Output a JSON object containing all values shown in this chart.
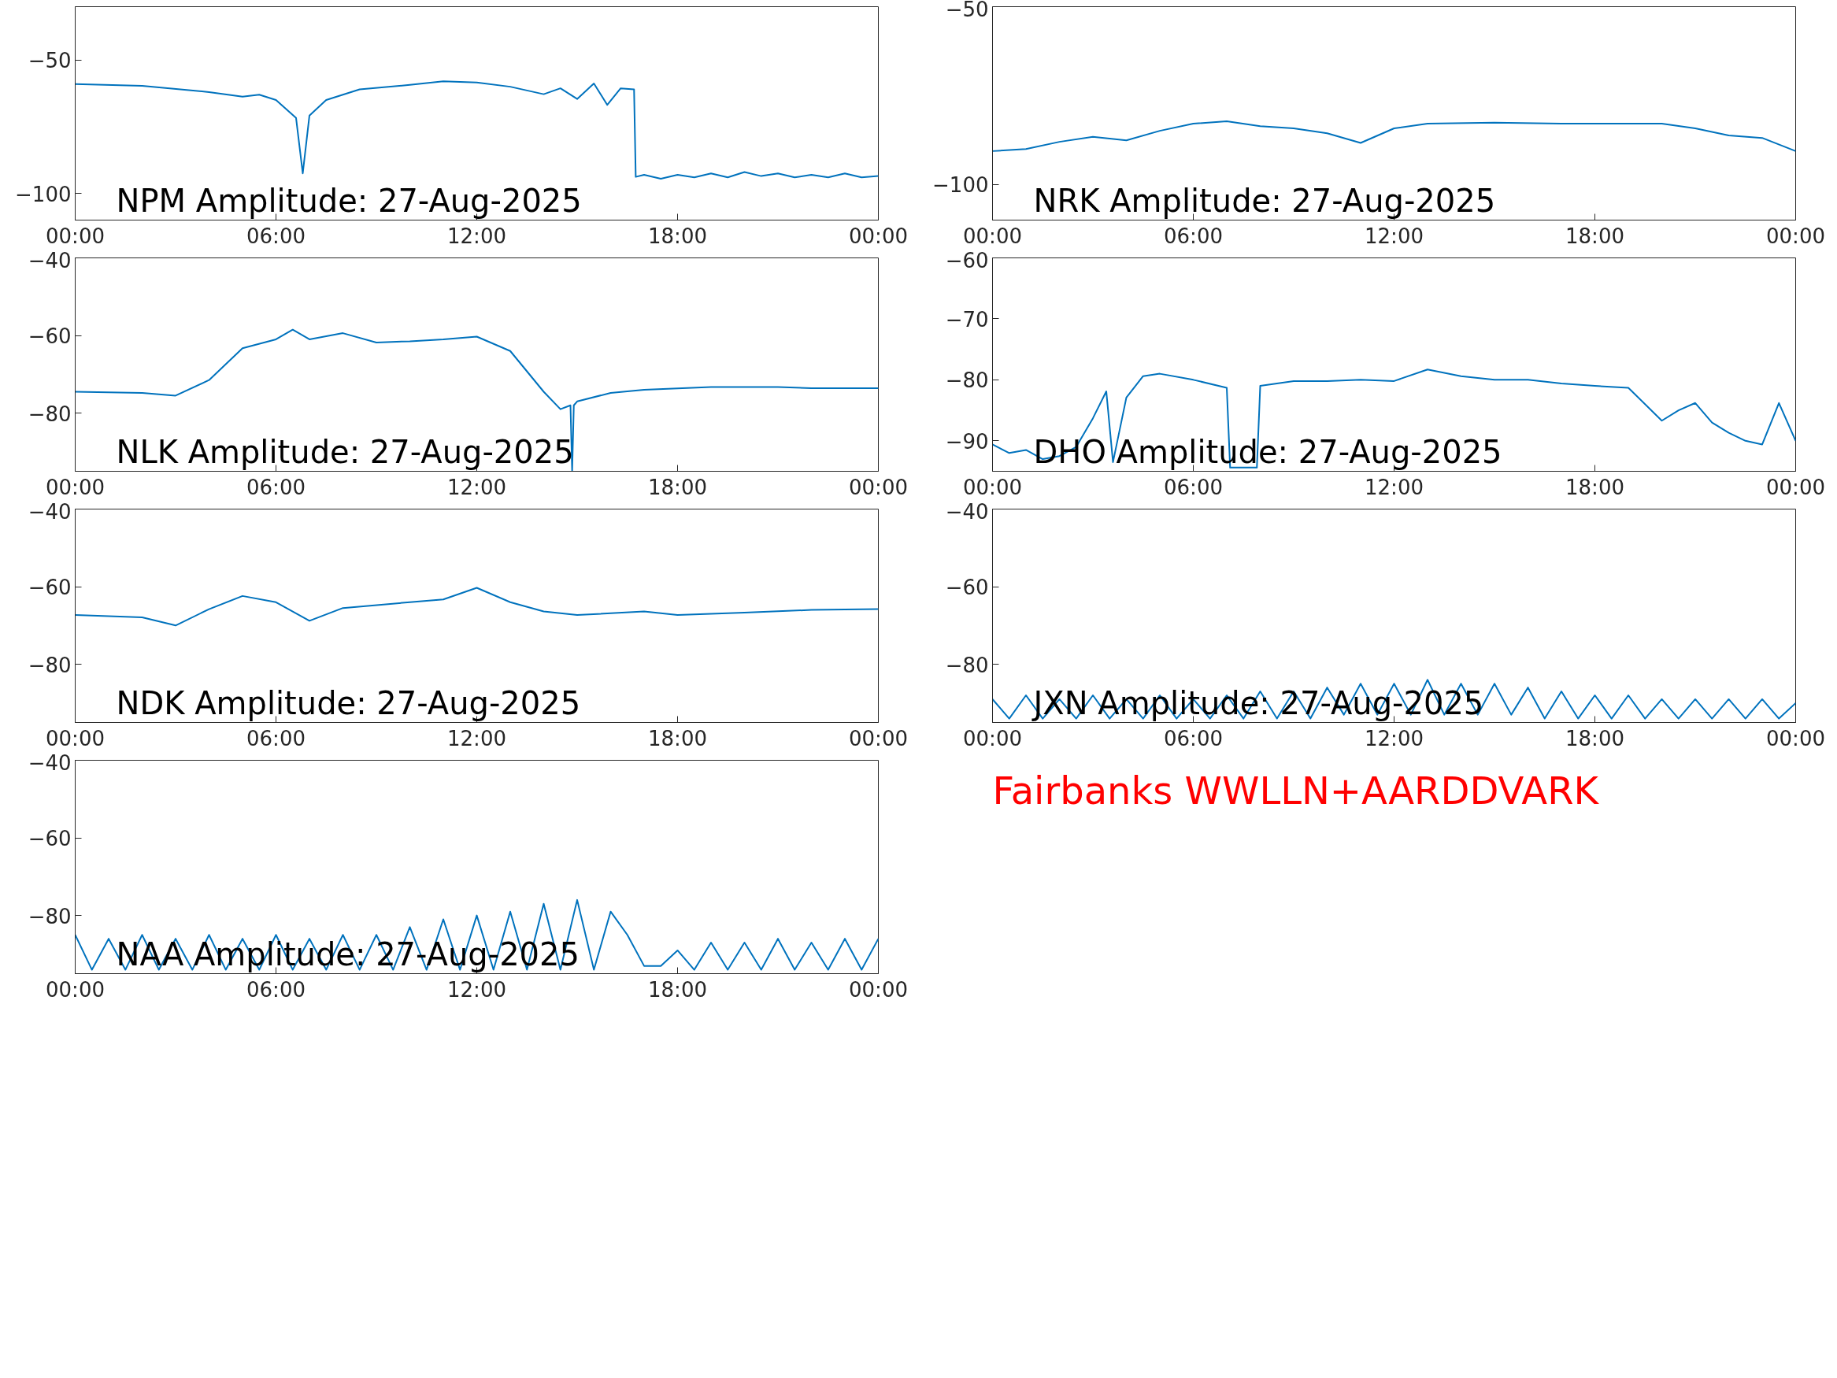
{
  "chart_data": [
    {
      "type": "line",
      "title": "NPM Amplitude: 27-Aug-2025",
      "x": [
        0,
        2,
        4,
        5,
        5.5,
        6,
        6.6,
        6.8,
        7,
        7.5,
        8.5,
        10,
        11,
        12,
        13,
        14,
        14.5,
        15,
        15.5,
        15.9,
        16.3,
        16.7,
        16.75,
        17,
        17.5,
        18,
        18.5,
        19,
        19.5,
        20,
        20.5,
        21,
        21.5,
        22,
        22.5,
        23,
        23.5,
        24
      ],
      "series": [
        {
          "color": "#0072bd",
          "values": [
            -59,
            -59.7,
            -62,
            -63.7,
            -63,
            -65,
            -71.7,
            -92.5,
            -70.8,
            -65,
            -61,
            -59.3,
            -58,
            -58.4,
            -60,
            -62.8,
            -60.6,
            -64.6,
            -58.8,
            -66.8,
            -60.6,
            -61,
            -93.8,
            -93,
            -94.5,
            -93,
            -94,
            -92.5,
            -94,
            -92,
            -93.5,
            -92.5,
            -94,
            -93,
            -94,
            -92.5,
            -94,
            -93.5
          ]
        }
      ],
      "xlim": [
        0,
        24
      ],
      "xticks": [
        {
          "value": 0,
          "label": "00:00"
        },
        {
          "value": 6,
          "label": "06:00"
        },
        {
          "value": 12,
          "label": "12:00"
        },
        {
          "value": 18,
          "label": "18:00"
        },
        {
          "value": 24,
          "label": "00:00"
        }
      ],
      "ylim": [
        -110,
        -30
      ],
      "yticks": [
        -100,
        -50
      ]
    },
    {
      "type": "line",
      "title": "NRK Amplitude: 27-Aug-2025",
      "x": [
        0,
        1,
        2,
        3,
        4,
        5,
        6,
        7,
        8,
        9,
        10,
        11,
        12,
        13,
        15,
        17,
        19,
        20,
        21,
        22,
        23,
        24
      ],
      "series": [
        {
          "color": "#0072bd",
          "values": [
            -90.6,
            -90,
            -88,
            -86.6,
            -87.6,
            -84.9,
            -82.9,
            -82.2,
            -83.6,
            -84.2,
            -85.6,
            -88.3,
            -84.2,
            -82.9,
            -82.6,
            -82.9,
            -82.9,
            -82.9,
            -84.2,
            -86.2,
            -86.9,
            -90.6
          ]
        }
      ],
      "xlim": [
        0,
        24
      ],
      "xticks": [
        {
          "value": 0,
          "label": "00:00"
        },
        {
          "value": 6,
          "label": "06:00"
        },
        {
          "value": 12,
          "label": "12:00"
        },
        {
          "value": 18,
          "label": "18:00"
        },
        {
          "value": 24,
          "label": "00:00"
        }
      ],
      "ylim": [
        -110,
        -50
      ],
      "yticks": [
        -100,
        -50
      ]
    },
    {
      "type": "line",
      "title": "NLK Amplitude: 27-Aug-2025",
      "x": [
        0,
        2,
        3,
        4,
        5,
        6,
        6.5,
        7,
        8,
        9,
        10,
        11,
        12,
        13,
        14,
        14.5,
        14.8,
        14.85,
        14.9,
        15,
        16,
        17,
        19,
        21,
        22,
        24
      ],
      "series": [
        {
          "color": "#0072bd",
          "values": [
            -74.5,
            -74.8,
            -75.5,
            -71.5,
            -63.3,
            -61,
            -58.5,
            -61,
            -59.4,
            -61.8,
            -61.5,
            -61,
            -60.3,
            -64,
            -74.5,
            -79,
            -78,
            -95,
            -78,
            -77,
            -74.8,
            -74,
            -73.3,
            -73.3,
            -73.6,
            -73.6
          ]
        }
      ],
      "xlim": [
        0,
        24
      ],
      "xticks": [
        {
          "value": 0,
          "label": "00:00"
        },
        {
          "value": 6,
          "label": "06:00"
        },
        {
          "value": 12,
          "label": "12:00"
        },
        {
          "value": 18,
          "label": "18:00"
        },
        {
          "value": 24,
          "label": "00:00"
        }
      ],
      "ylim": [
        -95,
        -40
      ],
      "yticks": [
        -80,
        -60,
        -40
      ]
    },
    {
      "type": "line",
      "title": "DHO Amplitude: 27-Aug-2025",
      "x": [
        0,
        0.5,
        1,
        1.5,
        2,
        2.5,
        3,
        3.4,
        3.6,
        4,
        4.5,
        5,
        6,
        7,
        7.1,
        7.5,
        7.9,
        8,
        9,
        10,
        11,
        12,
        13,
        14,
        15,
        16,
        17,
        18,
        19,
        20,
        20.5,
        21,
        21.5,
        22,
        22.5,
        23,
        23.5,
        24
      ],
      "series": [
        {
          "color": "#0072bd",
          "values": [
            -90.6,
            -92,
            -91.5,
            -93,
            -92.5,
            -91,
            -86.3,
            -81.9,
            -93.5,
            -82.9,
            -79.4,
            -79,
            -80,
            -81.3,
            -94.4,
            -94.4,
            -94.4,
            -81,
            -80.2,
            -80.2,
            -80,
            -80.2,
            -78.3,
            -79.4,
            -80,
            -80,
            -80.6,
            -81,
            -81.3,
            -86.7,
            -85,
            -83.8,
            -87,
            -88.7,
            -90,
            -90.6,
            -83.8,
            -90
          ]
        }
      ],
      "xlim": [
        0,
        24
      ],
      "xticks": [
        {
          "value": 0,
          "label": "00:00"
        },
        {
          "value": 6,
          "label": "06:00"
        },
        {
          "value": 12,
          "label": "12:00"
        },
        {
          "value": 18,
          "label": "18:00"
        },
        {
          "value": 24,
          "label": "00:00"
        }
      ],
      "ylim": [
        -95,
        -60
      ],
      "yticks": [
        -90,
        -80,
        -70,
        -60
      ]
    },
    {
      "type": "line",
      "title": "NDK Amplitude: 27-Aug-2025",
      "x": [
        0,
        2,
        3,
        4,
        5,
        6,
        7,
        8,
        10,
        11,
        12,
        13,
        14,
        15,
        17,
        18,
        20,
        22,
        24
      ],
      "series": [
        {
          "color": "#0072bd",
          "values": [
            -67.3,
            -67.9,
            -70,
            -65.8,
            -62.4,
            -64,
            -68.8,
            -65.5,
            -64,
            -63.3,
            -60.3,
            -64,
            -66.4,
            -67.3,
            -66.4,
            -67.3,
            -66.7,
            -66,
            -65.8
          ]
        }
      ],
      "xlim": [
        0,
        24
      ],
      "xticks": [
        {
          "value": 0,
          "label": "00:00"
        },
        {
          "value": 6,
          "label": "06:00"
        },
        {
          "value": 12,
          "label": "12:00"
        },
        {
          "value": 18,
          "label": "18:00"
        },
        {
          "value": 24,
          "label": "00:00"
        }
      ],
      "ylim": [
        -95,
        -40
      ],
      "yticks": [
        -80,
        -60,
        -40
      ]
    },
    {
      "type": "line",
      "title": "JXN Amplitude: 27-Aug-2025",
      "x": [
        0,
        0.5,
        1,
        1.5,
        2,
        2.5,
        3,
        3.5,
        4,
        4.5,
        5,
        5.5,
        6,
        6.5,
        7,
        7.5,
        8,
        8.5,
        9,
        9.5,
        10,
        10.5,
        11,
        11.5,
        12,
        12.5,
        13,
        13.5,
        14,
        14.5,
        15,
        15.5,
        16,
        16.5,
        17,
        17.5,
        18,
        18.5,
        19,
        19.5,
        20,
        20.5,
        21,
        21.5,
        22,
        22.5,
        23,
        23.5,
        24
      ],
      "series": [
        {
          "color": "#0072bd",
          "values": [
            -89,
            -94,
            -88,
            -94,
            -89,
            -94,
            -88,
            -94,
            -89,
            -94,
            -88,
            -94,
            -89,
            -94,
            -88,
            -94,
            -87,
            -94,
            -87,
            -94,
            -86,
            -93,
            -85,
            -93,
            -85,
            -93,
            -84,
            -93,
            -85,
            -93,
            -85,
            -93,
            -86,
            -94,
            -87,
            -94,
            -88,
            -94,
            -88,
            -94,
            -89,
            -94,
            -89,
            -94,
            -89,
            -94,
            -89,
            -94,
            -90
          ]
        }
      ],
      "xlim": [
        0,
        24
      ],
      "xticks": [
        {
          "value": 0,
          "label": "00:00"
        },
        {
          "value": 6,
          "label": "06:00"
        },
        {
          "value": 12,
          "label": "12:00"
        },
        {
          "value": 18,
          "label": "18:00"
        },
        {
          "value": 24,
          "label": "00:00"
        }
      ],
      "ylim": [
        -95,
        -40
      ],
      "yticks": [
        -80,
        -60,
        -40
      ]
    },
    {
      "type": "line",
      "title": "NAA Amplitude: 27-Aug-2025",
      "x": [
        0,
        0.5,
        1,
        1.5,
        2,
        2.5,
        3,
        3.5,
        4,
        4.5,
        5,
        5.5,
        6,
        6.5,
        7,
        7.5,
        8,
        8.5,
        9,
        9.5,
        10,
        10.5,
        11,
        11.5,
        12,
        12.5,
        13,
        13.5,
        14,
        14.5,
        15,
        15.5,
        16,
        16.5,
        17,
        17.5,
        18,
        18.5,
        19,
        19.5,
        20,
        20.5,
        21,
        21.5,
        22,
        22.5,
        23,
        23.5,
        24
      ],
      "series": [
        {
          "color": "#0072bd",
          "values": [
            -85,
            -94,
            -86,
            -94,
            -85,
            -94,
            -86,
            -94,
            -85,
            -94,
            -86,
            -94,
            -85,
            -94,
            -86,
            -94,
            -85,
            -94,
            -85,
            -94,
            -83,
            -94,
            -81,
            -94,
            -80,
            -94,
            -79,
            -94,
            -77,
            -94,
            -76,
            -94,
            -79,
            -85,
            -93,
            -93,
            -89,
            -94,
            -87,
            -94,
            -87,
            -94,
            -86,
            -94,
            -87,
            -94,
            -86,
            -94,
            -86
          ]
        }
      ],
      "xlim": [
        0,
        24
      ],
      "xticks": [
        {
          "value": 0,
          "label": "00:00"
        },
        {
          "value": 6,
          "label": "06:00"
        },
        {
          "value": 12,
          "label": "12:00"
        },
        {
          "value": 18,
          "label": "18:00"
        },
        {
          "value": 24,
          "label": "00:00"
        }
      ],
      "ylim": [
        -95,
        -40
      ],
      "yticks": [
        -80,
        -60,
        -40
      ]
    },
    {
      "type": "other",
      "annotations": [
        "Fairbanks WWLLN+AARDDVARK"
      ]
    }
  ]
}
